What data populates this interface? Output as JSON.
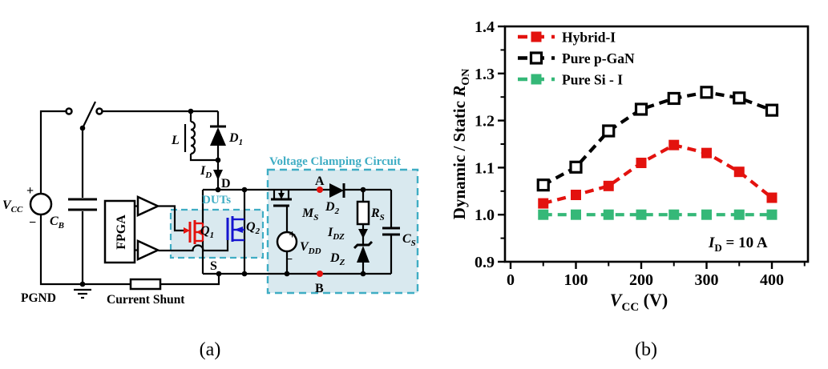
{
  "figure": {
    "caption_a": "(a)",
    "caption_b": "(b)"
  },
  "circuit": {
    "colors": {
      "accent_cyan": "#3fadc4",
      "box_fill": "#d9e9ef",
      "red": "#e3120e",
      "blue": "#1515cf"
    },
    "labels": {
      "vcc": {
        "main": "V",
        "sub": "CC"
      },
      "plus_vcc": "+",
      "minus_vcc": "−",
      "cb": {
        "main": "C",
        "sub": "B"
      },
      "pgnd": "PGND",
      "current_shunt": "Current Shunt",
      "fpga": "FPGA",
      "inductor": "L",
      "d1": {
        "main": "D",
        "sub": "1"
      },
      "id": {
        "main": "I",
        "sub": "D"
      },
      "node_d": "D",
      "node_s": "S",
      "duts": "DUTs",
      "q1": {
        "main": "Q",
        "sub": "1"
      },
      "q2": {
        "main": "Q",
        "sub": "2"
      },
      "clamp_title": "Voltage Clamping Circuit",
      "node_a": "A",
      "node_b": "B",
      "ms": {
        "main": "M",
        "sub": "S"
      },
      "vdd": {
        "main": "V",
        "sub": "DD"
      },
      "plus_vdd": "+",
      "minus_vdd": "−",
      "d2": {
        "main": "D",
        "sub": "2"
      },
      "rs": {
        "main": "R",
        "sub": "S"
      },
      "idz": {
        "main": "I",
        "sub": "DZ"
      },
      "dz": {
        "main": "D",
        "sub": "Z"
      },
      "cs": {
        "main": "C",
        "sub": "S"
      }
    }
  },
  "chart_data": {
    "type": "line",
    "title": "",
    "x": [
      50,
      100,
      150,
      200,
      250,
      300,
      350,
      400
    ],
    "series": [
      {
        "name": "Hybrid-I",
        "color": "#e3120e",
        "marker": "filled-square",
        "values": [
          1.024,
          1.042,
          1.061,
          1.11,
          1.148,
          1.131,
          1.091,
          1.036
        ]
      },
      {
        "name": "Pure p-GaN",
        "color": "#000000",
        "marker": "open-square",
        "values": [
          1.063,
          1.101,
          1.178,
          1.224,
          1.247,
          1.26,
          1.248,
          1.222
        ]
      },
      {
        "name": "Pure Si - I",
        "color": "#35b878",
        "marker": "filled-square",
        "values": [
          1.0,
          1.0,
          1.0,
          1.0,
          1.0,
          1.0,
          1.0,
          1.0
        ]
      }
    ],
    "xlabel_parts": {
      "main": "V",
      "sub": "CC",
      "rest": " (V)"
    },
    "ylabel_parts": {
      "pre": "Dynamic / Static ",
      "main": "R",
      "sub": "ON"
    },
    "annotation_parts": {
      "main": "I",
      "sub": "D",
      "rest": " = 10 A"
    },
    "xlim": [
      0,
      455
    ],
    "ylim": [
      0.9,
      1.4
    ],
    "xticks": [
      0,
      100,
      200,
      300,
      400
    ],
    "yticks": [
      0.9,
      1.0,
      1.1,
      1.2,
      1.3,
      1.4
    ],
    "x_minor_ticks": [
      50,
      150,
      250,
      350,
      450
    ],
    "y_minor_ticks": [
      0.95,
      1.05,
      1.15,
      1.25,
      1.35
    ],
    "grid": false,
    "legend_position": "top-left"
  }
}
